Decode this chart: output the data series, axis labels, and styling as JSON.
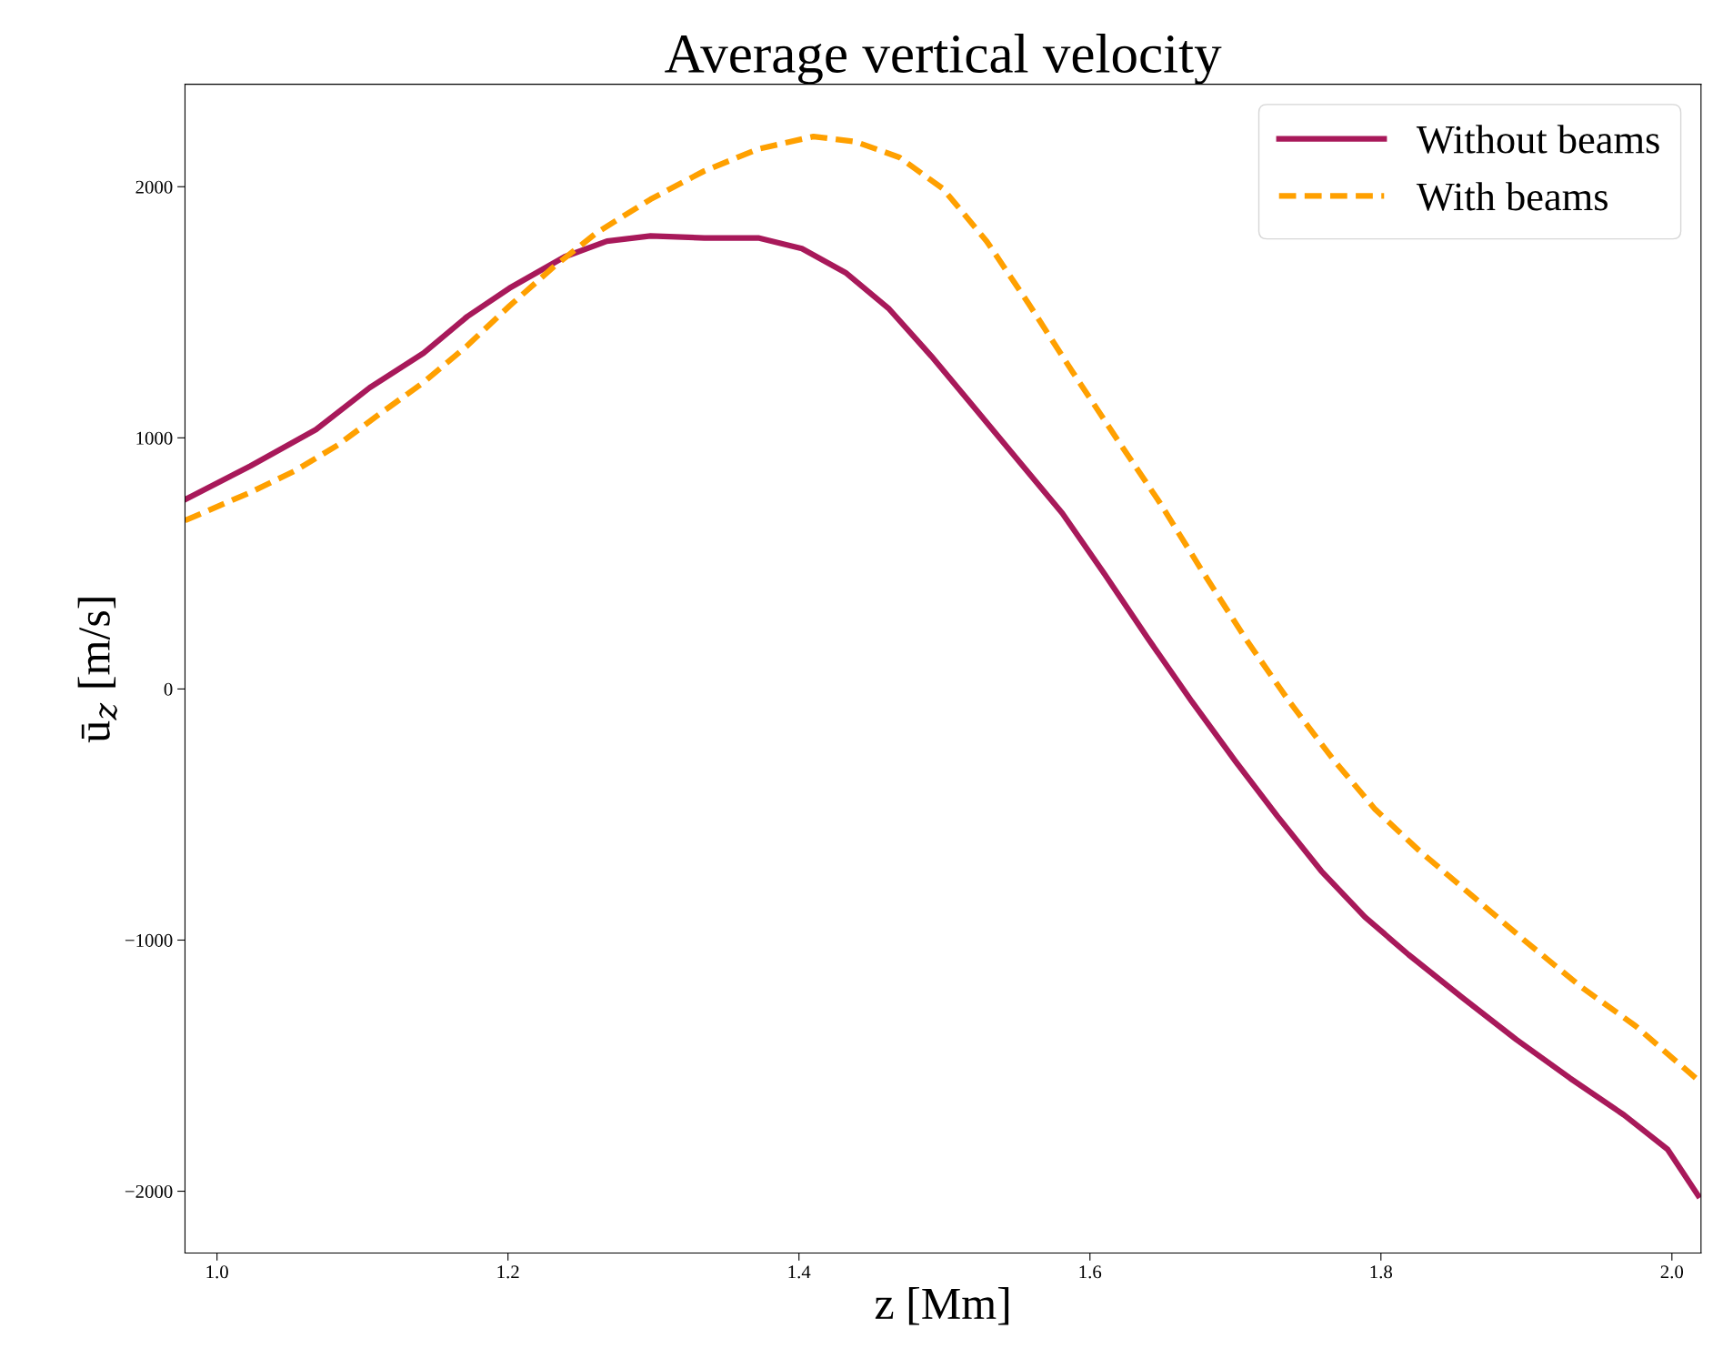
{
  "chart_data": {
    "type": "line",
    "title": "Average vertical velocity",
    "xlabel": "z [Mm]",
    "ylabel": "ū$_{z}$ [m/s]",
    "xlim": [
      0.978,
      2.02
    ],
    "ylim": [
      -2246,
      2408
    ],
    "xticks": [
      {
        "value": 1,
        "label": "1.0"
      },
      1.2,
      1.4,
      1.6,
      1.8,
      {
        "value": 2,
        "label": "2.0"
      }
    ],
    "yticks": [
      {
        "value": -2000,
        "label": "−2000"
      },
      {
        "value": -1000,
        "label": "−1000"
      },
      0,
      1000,
      2000
    ],
    "grid": false,
    "legend": "top right",
    "marker": "none",
    "series": [
      {
        "name": "Without beams",
        "color": "#a8195a",
        "line_style": "solid",
        "x": [
          0.978,
          1.023,
          1.068,
          1.105,
          1.142,
          1.172,
          1.201,
          1.239,
          1.268,
          1.298,
          1.335,
          1.372,
          1.402,
          1.432,
          1.462,
          1.491,
          1.521,
          1.551,
          1.581,
          1.61,
          1.64,
          1.67,
          1.7,
          1.729,
          1.759,
          1.789,
          1.819,
          1.856,
          1.893,
          1.93,
          1.967,
          1.997,
          2.018
        ],
        "values": [
          754,
          888,
          1033,
          1200,
          1338,
          1483,
          1596,
          1721,
          1783,
          1804,
          1796,
          1796,
          1754,
          1658,
          1513,
          1325,
          1117,
          908,
          700,
          458,
          200,
          -50,
          -288,
          -508,
          -725,
          -908,
          -1058,
          -1229,
          -1396,
          -1550,
          -1696,
          -1833,
          -2017
        ]
      },
      {
        "name": "With beams",
        "color": "#ffa000",
        "line_style": "dashed",
        "x": [
          0.978,
          1.023,
          1.053,
          1.083,
          1.112,
          1.142,
          1.172,
          1.201,
          1.231,
          1.261,
          1.298,
          1.335,
          1.372,
          1.41,
          1.439,
          1.469,
          1.499,
          1.529,
          1.558,
          1.588,
          1.618,
          1.648,
          1.677,
          1.707,
          1.737,
          1.767,
          1.796,
          1.826,
          1.863,
          1.9,
          1.938,
          1.975,
          2.018
        ],
        "values": [
          671,
          783,
          867,
          971,
          1096,
          1221,
          1367,
          1525,
          1679,
          1817,
          1950,
          2063,
          2150,
          2200,
          2179,
          2117,
          1992,
          1783,
          1533,
          1263,
          1000,
          742,
          471,
          200,
          -50,
          -279,
          -479,
          -642,
          -825,
          -1008,
          -1188,
          -1342,
          -1558
        ]
      }
    ]
  }
}
